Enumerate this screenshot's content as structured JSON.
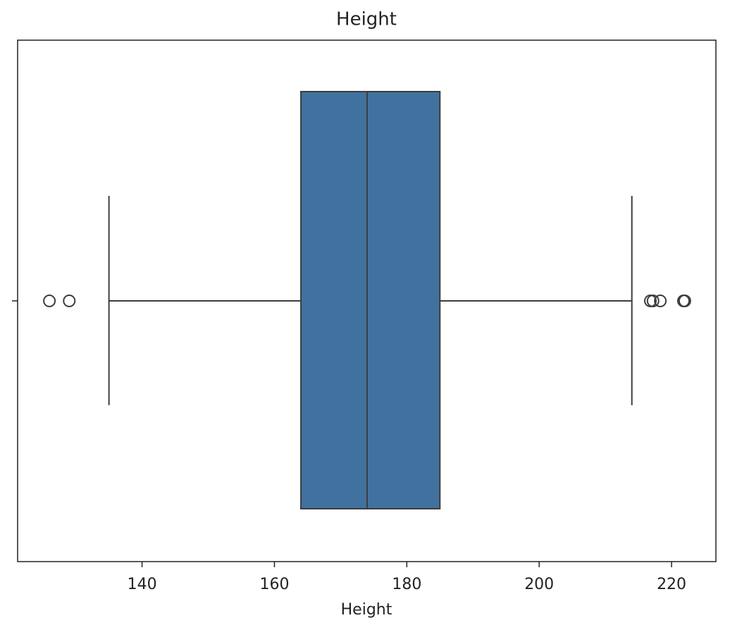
{
  "chart_data": {
    "type": "box",
    "title": "Height",
    "x_label": "Height",
    "categories": [
      null
    ],
    "xlim": [
      121.2,
      226.7
    ],
    "xticks": [
      140,
      160,
      180,
      200,
      220
    ],
    "box": {
      "color": "#41729f",
      "whislo": 135,
      "q1": 164,
      "median": 174,
      "q3": 185,
      "whishi": 214,
      "outliers": [
        126,
        129,
        216.8,
        217.2,
        218.3,
        221.8,
        222
      ]
    }
  }
}
